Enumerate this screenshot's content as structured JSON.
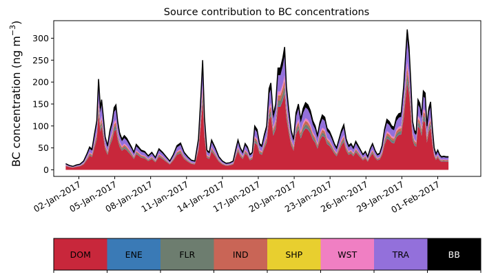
{
  "chart_data": {
    "type": "area",
    "stacked": true,
    "title": "Source contribution to BC concentrations",
    "ylabel": "BC concentration (ng m",
    "ylabel_superscript": "−3",
    "ylabel_close": ")",
    "xlabel": "",
    "ylim": [
      -15,
      340
    ],
    "yticks": [
      0,
      50,
      100,
      150,
      200,
      250,
      300
    ],
    "xlim": [
      -2.1,
      33.6
    ],
    "xticks": [
      {
        "day": 0,
        "label": "02-Jan-2017"
      },
      {
        "day": 3,
        "label": "05-Jan-2017"
      },
      {
        "day": 6,
        "label": "08-Jan-2017"
      },
      {
        "day": 9,
        "label": "11-Jan-2017"
      },
      {
        "day": 12,
        "label": "14-Jan-2017"
      },
      {
        "day": 15,
        "label": "17-Jan-2017"
      },
      {
        "day": 18,
        "label": "20-Jan-2017"
      },
      {
        "day": 21,
        "label": "23-Jan-2017"
      },
      {
        "day": 24,
        "label": "26-Jan-2017"
      },
      {
        "day": 27,
        "label": "29-Jan-2017"
      },
      {
        "day": 30,
        "label": "01-Feb-2017"
      }
    ],
    "x_unit": "days since 02-Jan-2017",
    "total_series": "BB",
    "total": [
      [
        -1.1,
        14
      ],
      [
        -0.8,
        10
      ],
      [
        -0.5,
        8
      ],
      [
        -0.2,
        11
      ],
      [
        0.1,
        13
      ],
      [
        0.4,
        20
      ],
      [
        0.7,
        38
      ],
      [
        0.9,
        52
      ],
      [
        1.1,
        47
      ],
      [
        1.3,
        80
      ],
      [
        1.5,
        112
      ],
      [
        1.65,
        207
      ],
      [
        1.8,
        140
      ],
      [
        1.9,
        160
      ],
      [
        2.05,
        120
      ],
      [
        2.2,
        75
      ],
      [
        2.4,
        55
      ],
      [
        2.6,
        90
      ],
      [
        2.8,
        112
      ],
      [
        2.95,
        142
      ],
      [
        3.1,
        148
      ],
      [
        3.25,
        110
      ],
      [
        3.4,
        85
      ],
      [
        3.6,
        70
      ],
      [
        3.8,
        78
      ],
      [
        4.0,
        72
      ],
      [
        4.2,
        62
      ],
      [
        4.4,
        52
      ],
      [
        4.6,
        40
      ],
      [
        4.8,
        58
      ],
      [
        5.0,
        52
      ],
      [
        5.2,
        45
      ],
      [
        5.5,
        42
      ],
      [
        5.8,
        32
      ],
      [
        6.1,
        40
      ],
      [
        6.4,
        28
      ],
      [
        6.7,
        48
      ],
      [
        7.0,
        40
      ],
      [
        7.3,
        30
      ],
      [
        7.6,
        20
      ],
      [
        7.9,
        35
      ],
      [
        8.2,
        55
      ],
      [
        8.5,
        61
      ],
      [
        8.8,
        40
      ],
      [
        9.1,
        30
      ],
      [
        9.4,
        22
      ],
      [
        9.7,
        20
      ],
      [
        10.0,
        70
      ],
      [
        10.2,
        168
      ],
      [
        10.35,
        250
      ],
      [
        10.5,
        120
      ],
      [
        10.7,
        45
      ],
      [
        10.9,
        40
      ],
      [
        11.1,
        68
      ],
      [
        11.4,
        50
      ],
      [
        11.7,
        30
      ],
      [
        12.0,
        20
      ],
      [
        12.3,
        15
      ],
      [
        12.6,
        16
      ],
      [
        12.9,
        20
      ],
      [
        13.1,
        45
      ],
      [
        13.3,
        68
      ],
      [
        13.5,
        50
      ],
      [
        13.7,
        40
      ],
      [
        13.9,
        60
      ],
      [
        14.1,
        52
      ],
      [
        14.3,
        35
      ],
      [
        14.5,
        40
      ],
      [
        14.7,
        100
      ],
      [
        14.9,
        92
      ],
      [
        15.1,
        60
      ],
      [
        15.3,
        55
      ],
      [
        15.5,
        80
      ],
      [
        15.7,
        100
      ],
      [
        15.9,
        185
      ],
      [
        16.05,
        198
      ],
      [
        16.25,
        125
      ],
      [
        16.45,
        150
      ],
      [
        16.65,
        232
      ],
      [
        16.85,
        232
      ],
      [
        17.05,
        255
      ],
      [
        17.2,
        280
      ],
      [
        17.35,
        190
      ],
      [
        17.55,
        135
      ],
      [
        17.75,
        90
      ],
      [
        17.95,
        70
      ],
      [
        18.15,
        130
      ],
      [
        18.35,
        150
      ],
      [
        18.55,
        115
      ],
      [
        18.75,
        140
      ],
      [
        18.95,
        153
      ],
      [
        19.15,
        148
      ],
      [
        19.35,
        135
      ],
      [
        19.55,
        112
      ],
      [
        19.75,
        100
      ],
      [
        19.95,
        78
      ],
      [
        20.15,
        108
      ],
      [
        20.35,
        125
      ],
      [
        20.55,
        120
      ],
      [
        20.75,
        95
      ],
      [
        20.95,
        88
      ],
      [
        21.15,
        75
      ],
      [
        21.35,
        60
      ],
      [
        21.55,
        50
      ],
      [
        21.75,
        70
      ],
      [
        21.95,
        90
      ],
      [
        22.15,
        103
      ],
      [
        22.35,
        70
      ],
      [
        22.55,
        55
      ],
      [
        22.75,
        60
      ],
      [
        22.95,
        50
      ],
      [
        23.15,
        65
      ],
      [
        23.35,
        55
      ],
      [
        23.55,
        45
      ],
      [
        23.75,
        35
      ],
      [
        23.95,
        42
      ],
      [
        24.15,
        30
      ],
      [
        24.35,
        48
      ],
      [
        24.55,
        60
      ],
      [
        24.75,
        45
      ],
      [
        24.95,
        35
      ],
      [
        25.15,
        38
      ],
      [
        25.35,
        55
      ],
      [
        25.55,
        92
      ],
      [
        25.75,
        115
      ],
      [
        25.95,
        110
      ],
      [
        26.15,
        100
      ],
      [
        26.35,
        97
      ],
      [
        26.55,
        120
      ],
      [
        26.75,
        128
      ],
      [
        26.95,
        130
      ],
      [
        27.15,
        190
      ],
      [
        27.3,
        255
      ],
      [
        27.45,
        320
      ],
      [
        27.6,
        280
      ],
      [
        27.75,
        200
      ],
      [
        27.9,
        110
      ],
      [
        28.05,
        90
      ],
      [
        28.2,
        85
      ],
      [
        28.35,
        160
      ],
      [
        28.5,
        152
      ],
      [
        28.65,
        125
      ],
      [
        28.8,
        180
      ],
      [
        28.95,
        175
      ],
      [
        29.1,
        100
      ],
      [
        29.25,
        140
      ],
      [
        29.4,
        155
      ],
      [
        29.55,
        95
      ],
      [
        29.7,
        50
      ],
      [
        29.85,
        36
      ],
      [
        30.0,
        45
      ],
      [
        30.15,
        35
      ],
      [
        30.3,
        30
      ],
      [
        30.5,
        31
      ],
      [
        30.7,
        30
      ],
      [
        30.9,
        30
      ]
    ],
    "series_order": [
      "DOM",
      "ENE",
      "FLR",
      "IND",
      "SHP",
      "WST",
      "TRA",
      "BB"
    ],
    "series": [
      {
        "name": "DOM",
        "color": "#c8273b",
        "fraction_of_total": 0.62
      },
      {
        "name": "ENE",
        "color": "#3a7ab6",
        "fraction_of_total": 0.01
      },
      {
        "name": "FLR",
        "color": "#6d7d6f",
        "fraction_of_total": 0.05
      },
      {
        "name": "IND",
        "color": "#c96556",
        "fraction_of_total": 0.05
      },
      {
        "name": "SHP",
        "color": "#e8cf2f",
        "fraction_of_total": 0.005
      },
      {
        "name": "WST",
        "color": "#f07fc3",
        "fraction_of_total": 0.035
      },
      {
        "name": "TRA",
        "color": "#9370db",
        "fraction_of_total": 0.16
      },
      {
        "name": "BB",
        "color": "#000000",
        "fraction_of_total": 0.07
      }
    ],
    "legend": [
      {
        "name": "DOM",
        "color": "#c8273b",
        "text_color": "#000000"
      },
      {
        "name": "ENE",
        "color": "#3a7ab6",
        "text_color": "#000000"
      },
      {
        "name": "FLR",
        "color": "#6d7d6f",
        "text_color": "#000000"
      },
      {
        "name": "IND",
        "color": "#c96556",
        "text_color": "#000000"
      },
      {
        "name": "SHP",
        "color": "#e8cf2f",
        "text_color": "#000000"
      },
      {
        "name": "WST",
        "color": "#f07fc3",
        "text_color": "#000000"
      },
      {
        "name": "TRA",
        "color": "#9370db",
        "text_color": "#000000"
      },
      {
        "name": "BB",
        "color": "#000000",
        "text_color": "#ffffff"
      }
    ],
    "legend_placement": "bottom colorbar"
  }
}
